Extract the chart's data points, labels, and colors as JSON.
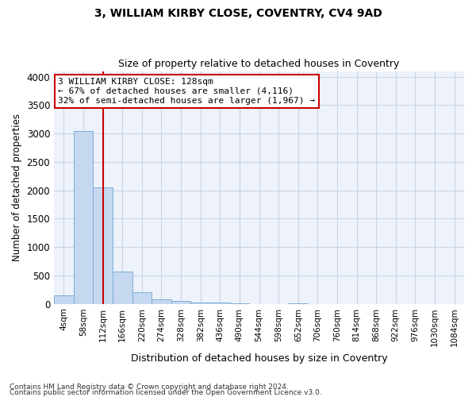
{
  "title1": "3, WILLIAM KIRBY CLOSE, COVENTRY, CV4 9AD",
  "title2": "Size of property relative to detached houses in Coventry",
  "xlabel": "Distribution of detached houses by size in Coventry",
  "ylabel": "Number of detached properties",
  "footnote1": "Contains HM Land Registry data © Crown copyright and database right 2024.",
  "footnote2": "Contains public sector information licensed under the Open Government Licence v3.0.",
  "bar_labels": [
    "4sqm",
    "58sqm",
    "112sqm",
    "166sqm",
    "220sqm",
    "274sqm",
    "328sqm",
    "382sqm",
    "436sqm",
    "490sqm",
    "544sqm",
    "598sqm",
    "652sqm",
    "706sqm",
    "760sqm",
    "814sqm",
    "868sqm",
    "922sqm",
    "976sqm",
    "1030sqm",
    "1084sqm"
  ],
  "bar_values": [
    150,
    3050,
    2050,
    570,
    200,
    75,
    55,
    30,
    20,
    15,
    0,
    0,
    15,
    0,
    0,
    0,
    0,
    0,
    0,
    0,
    0
  ],
  "bar_color": "#c5d8f0",
  "bar_edge_color": "#7aadd4",
  "grid_color": "#c8d4e8",
  "background_color": "#e8eef8",
  "axes_bg_color": "#eef2fb",
  "red_line_x": 2.0,
  "annotation_line1": "3 WILLIAM KIRBY CLOSE: 128sqm",
  "annotation_line2": "← 67% of detached houses are smaller (4,116)",
  "annotation_line3": "32% of semi-detached houses are larger (1,967) →",
  "annotation_box_color": "#ffffff",
  "annotation_box_edgecolor": "#cc0000",
  "ylim": [
    0,
    4100
  ],
  "yticks": [
    0,
    500,
    1000,
    1500,
    2000,
    2500,
    3000,
    3500,
    4000
  ]
}
